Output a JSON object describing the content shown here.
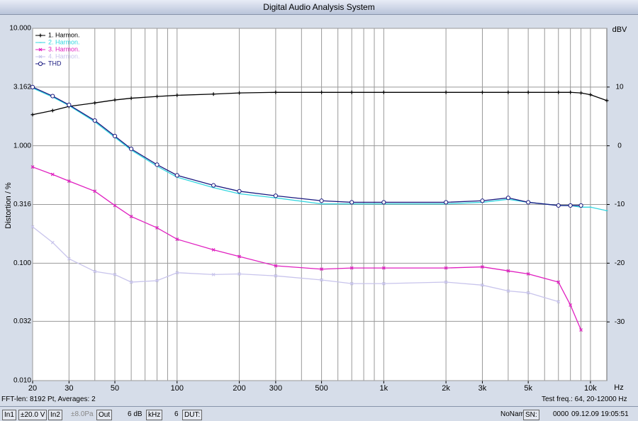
{
  "window_title": "Digital Audio Analysis System",
  "chart_data": {
    "type": "line",
    "y_label": "Distortion / %",
    "x_unit": "Hz",
    "y2_unit": "dBV",
    "x": [
      20,
      25,
      30,
      40,
      50,
      60,
      80,
      100,
      150,
      200,
      300,
      500,
      700,
      1000,
      2000,
      3000,
      4000,
      5000,
      7000,
      8000,
      9000,
      10000,
      12000
    ],
    "xlim": [
      20,
      12000
    ],
    "x_log": true,
    "xticks": [
      20,
      30,
      50,
      100,
      200,
      300,
      500,
      {
        "value": 1000,
        "label": "1k"
      },
      {
        "value": 2000,
        "label": "2k"
      },
      {
        "value": 3000,
        "label": "3k"
      },
      {
        "value": 5000,
        "label": "5k"
      },
      {
        "value": 10000,
        "label": "10k"
      }
    ],
    "xgrid": [
      20,
      30,
      40,
      50,
      60,
      70,
      80,
      90,
      100,
      200,
      300,
      400,
      500,
      600,
      700,
      800,
      900,
      1000,
      2000,
      3000,
      4000,
      5000,
      6000,
      7000,
      8000,
      9000,
      10000
    ],
    "ylim": [
      0.01,
      10
    ],
    "y_log": true,
    "yticks": [
      {
        "value": 10,
        "label": "10.000"
      },
      {
        "value": 3.162,
        "label": "3.162"
      },
      {
        "value": 1,
        "label": "1.000"
      },
      {
        "value": 0.316,
        "label": "0.316"
      },
      {
        "value": 0.1,
        "label": "0.100"
      },
      {
        "value": 0.032,
        "label": "0.032"
      },
      {
        "value": 0.01,
        "label": "0.010"
      }
    ],
    "y2lim": [
      -40,
      20
    ],
    "y2ticks": [
      10,
      0,
      -10,
      -20,
      -30
    ],
    "grid": true,
    "legend": "top-left",
    "series": [
      {
        "name": "1. Harmon.",
        "color": "#000000",
        "axis": "y2",
        "marker": "plus",
        "values": [
          5.3,
          6,
          6.7,
          7.3,
          7.8,
          8.1,
          8.4,
          8.6,
          8.8,
          9,
          9.1,
          9.1,
          9.1,
          9.1,
          9.1,
          9.1,
          9.1,
          9.1,
          9.1,
          9.1,
          9,
          8.7,
          7.7
        ]
      },
      {
        "name": "2. Harmon.",
        "color": "#33d6e0",
        "marker": "dot",
        "values": [
          3.1,
          2.6,
          2.2,
          1.6,
          1.18,
          0.92,
          0.67,
          0.54,
          0.44,
          0.39,
          0.36,
          0.32,
          0.32,
          0.32,
          0.32,
          0.33,
          0.35,
          0.33,
          0.31,
          0.31,
          0.3,
          0.3,
          0.28
        ]
      },
      {
        "name": "3. Harmon.",
        "color": "#e020c0",
        "marker": "x",
        "values": [
          0.66,
          0.57,
          0.5,
          0.41,
          0.31,
          0.25,
          0.2,
          0.16,
          0.13,
          0.114,
          0.095,
          0.089,
          0.091,
          0.091,
          0.091,
          0.093,
          0.086,
          0.081,
          0.069,
          0.044,
          0.027,
          null,
          null
        ]
      },
      {
        "name": "4. Harmon.",
        "color": "#c8c4ec",
        "marker": "x",
        "values": [
          0.204,
          0.15,
          0.109,
          0.085,
          0.08,
          0.069,
          0.071,
          0.083,
          0.08,
          0.081,
          0.078,
          0.072,
          0.067,
          0.067,
          0.069,
          0.065,
          0.058,
          0.056,
          0.047,
          null,
          null,
          null,
          null
        ]
      },
      {
        "name": "THD",
        "color": "#1a1a80",
        "marker": "circle",
        "values": [
          3.16,
          2.65,
          2.23,
          1.64,
          1.21,
          0.94,
          0.69,
          0.56,
          0.46,
          0.41,
          0.375,
          0.34,
          0.33,
          0.33,
          0.33,
          0.34,
          0.36,
          0.33,
          0.31,
          0.31,
          0.31,
          null,
          null
        ]
      }
    ]
  },
  "status": {
    "info": "FFT-len: 8192 Pt, Averages: 2",
    "test": "Test freq.: 64, 20-12000 Hz",
    "in1": "In1",
    "range1": "±20.0 V",
    "in2": "In2",
    "range2": "±8.0Pa",
    "out": "Out",
    "level": "6 dB",
    "unit": "kHz",
    "num": "6",
    "dut": "DUT:",
    "dut_name": "NoName",
    "sn": "SN:",
    "sn_value": "0000",
    "datetime": "09.12.09 19:05:51"
  }
}
